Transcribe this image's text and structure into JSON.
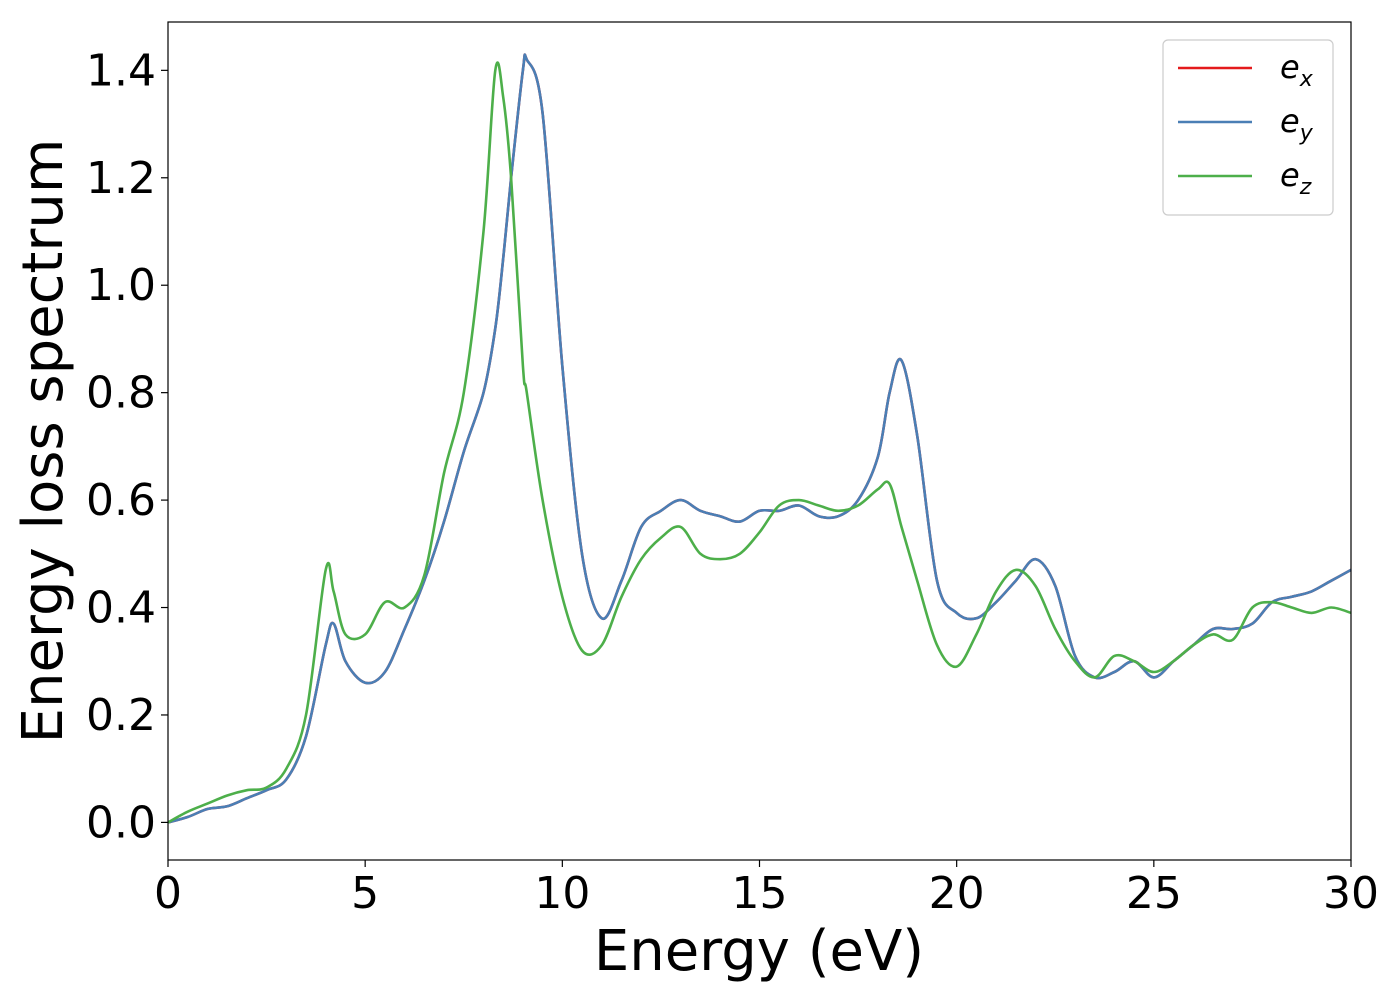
{
  "chart_data": {
    "type": "line",
    "title": "",
    "xlabel": "Energy (eV)",
    "ylabel": "Energy loss spectrum",
    "xlim": [
      0,
      30
    ],
    "ylim": [
      -0.07,
      1.49
    ],
    "xticks": [
      0,
      5,
      10,
      15,
      20,
      25,
      30
    ],
    "xtick_labels": [
      "0",
      "5",
      "10",
      "15",
      "20",
      "25",
      "30"
    ],
    "yticks": [
      0.0,
      0.2,
      0.4,
      0.6,
      0.8,
      1.0,
      1.2,
      1.4
    ],
    "ytick_labels": [
      "0.0",
      "0.2",
      "0.4",
      "0.6",
      "0.8",
      "1.0",
      "1.2",
      "1.4"
    ],
    "grid": false,
    "legend_position": "top-right",
    "x": [
      0,
      0.5,
      1,
      1.5,
      2,
      2.5,
      3,
      3.5,
      4,
      4.2,
      4.5,
      5,
      5.5,
      6,
      6.5,
      7,
      7.5,
      8,
      8.3,
      8.5,
      8.7,
      9,
      9.1,
      9.5,
      10,
      10.5,
      11,
      11.5,
      12,
      12.5,
      13,
      13.5,
      14,
      14.5,
      15,
      15.5,
      16,
      16.5,
      17,
      17.5,
      18,
      18.3,
      18.6,
      19,
      19.5,
      20,
      20.5,
      21,
      21.5,
      22,
      22.5,
      23,
      23.5,
      24,
      24.5,
      25,
      25.5,
      26,
      26.5,
      27,
      27.5,
      28,
      28.5,
      29,
      29.5,
      30
    ],
    "series": [
      {
        "name": "e_x",
        "legend_base": "e",
        "legend_sub": "x",
        "color": "#e41a1c",
        "values": [
          0,
          0.01,
          0.025,
          0.03,
          0.045,
          0.06,
          0.08,
          0.16,
          0.33,
          0.37,
          0.3,
          0.26,
          0.28,
          0.36,
          0.45,
          0.56,
          0.69,
          0.8,
          0.92,
          1.05,
          1.2,
          1.4,
          1.42,
          1.32,
          0.85,
          0.5,
          0.38,
          0.45,
          0.55,
          0.58,
          0.6,
          0.58,
          0.57,
          0.56,
          0.58,
          0.58,
          0.59,
          0.57,
          0.57,
          0.6,
          0.68,
          0.8,
          0.86,
          0.72,
          0.45,
          0.39,
          0.38,
          0.41,
          0.45,
          0.49,
          0.44,
          0.31,
          0.27,
          0.28,
          0.3,
          0.27,
          0.3,
          0.33,
          0.36,
          0.36,
          0.37,
          0.41,
          0.42,
          0.43,
          0.45,
          0.47
        ]
      },
      {
        "name": "e_y",
        "legend_base": "e",
        "legend_sub": "y",
        "color": "#4a7fb5",
        "values": [
          0,
          0.01,
          0.025,
          0.03,
          0.045,
          0.06,
          0.08,
          0.16,
          0.33,
          0.37,
          0.3,
          0.26,
          0.28,
          0.36,
          0.45,
          0.56,
          0.69,
          0.8,
          0.92,
          1.05,
          1.2,
          1.4,
          1.42,
          1.32,
          0.85,
          0.5,
          0.38,
          0.45,
          0.55,
          0.58,
          0.6,
          0.58,
          0.57,
          0.56,
          0.58,
          0.58,
          0.59,
          0.57,
          0.57,
          0.6,
          0.68,
          0.8,
          0.86,
          0.72,
          0.45,
          0.39,
          0.38,
          0.41,
          0.45,
          0.49,
          0.44,
          0.31,
          0.27,
          0.28,
          0.3,
          0.27,
          0.3,
          0.33,
          0.36,
          0.36,
          0.37,
          0.41,
          0.42,
          0.43,
          0.45,
          0.47
        ]
      },
      {
        "name": "e_z",
        "legend_base": "e",
        "legend_sub": "z",
        "color": "#4daf4a",
        "values": [
          0,
          0.02,
          0.035,
          0.05,
          0.06,
          0.065,
          0.1,
          0.2,
          0.47,
          0.43,
          0.35,
          0.35,
          0.41,
          0.4,
          0.46,
          0.65,
          0.8,
          1.1,
          1.4,
          1.35,
          1.2,
          0.85,
          0.8,
          0.6,
          0.42,
          0.32,
          0.33,
          0.42,
          0.49,
          0.53,
          0.55,
          0.5,
          0.49,
          0.5,
          0.54,
          0.59,
          0.6,
          0.59,
          0.58,
          0.59,
          0.62,
          0.63,
          0.55,
          0.45,
          0.33,
          0.29,
          0.35,
          0.43,
          0.47,
          0.44,
          0.36,
          0.3,
          0.27,
          0.31,
          0.3,
          0.28,
          0.3,
          0.33,
          0.35,
          0.34,
          0.4,
          0.41,
          0.4,
          0.39,
          0.4,
          0.39
        ]
      }
    ]
  }
}
